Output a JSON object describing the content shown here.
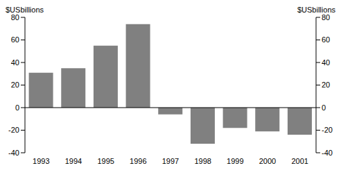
{
  "chart_data": {
    "type": "bar",
    "y_label": "$USbillions",
    "y2_label": "$USbillions",
    "categories": [
      "1993",
      "1994",
      "1995",
      "1996",
      "1997",
      "1998",
      "1999",
      "2000",
      "2001"
    ],
    "values": [
      31,
      35,
      55,
      74,
      -6,
      -32,
      -18,
      -21,
      -24
    ],
    "color": "#808080",
    "ylim": [
      -40,
      80
    ],
    "yticks": [
      -40,
      -20,
      0,
      20,
      40,
      60,
      80
    ],
    "y2lim": [
      -40,
      80
    ],
    "y2ticks": [
      -40,
      -20,
      0,
      20,
      40,
      60,
      80
    ],
    "grid": false
  }
}
